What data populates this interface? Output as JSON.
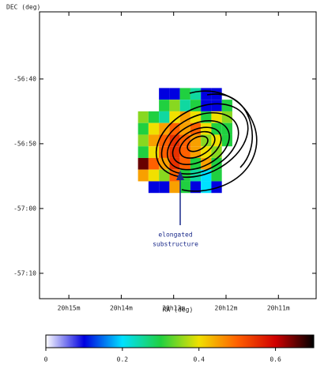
{
  "chart_data": {
    "type": "heatmap",
    "xlabel": "RA (deg)",
    "ylabel": "DEC (deg)",
    "xlim": [
      303.89,
      302.57
    ],
    "ylim": [
      -57.232,
      -56.494
    ],
    "xticks": [
      {
        "value": 303.75,
        "label": "20h15m"
      },
      {
        "value": 303.5,
        "label": "20h14m"
      },
      {
        "value": 303.25,
        "label": "20h13m"
      },
      {
        "value": 303.0,
        "label": "20h12m"
      },
      {
        "value": 302.75,
        "label": "20h11m"
      }
    ],
    "yticks": [
      {
        "value": -56.6667,
        "label": "-56:40"
      },
      {
        "value": -56.8333,
        "label": "-56:50"
      },
      {
        "value": -57.0,
        "label": "-57:00"
      },
      {
        "value": -57.1667,
        "label": "-57:10"
      }
    ],
    "x_edges": [
      303.42,
      303.37,
      303.32,
      303.27,
      303.22,
      303.17,
      303.12,
      303.07,
      303.02,
      302.97,
      302.92
    ],
    "y_edges": [
      -56.69,
      -56.72,
      -56.75,
      -56.78,
      -56.81,
      -56.84,
      -56.87,
      -56.9,
      -56.93,
      -56.96
    ],
    "z": [
      [
        null,
        null,
        0.1,
        0.1,
        0.3,
        0.25,
        0.1,
        0.1,
        null,
        null
      ],
      [
        null,
        null,
        0.3,
        0.35,
        0.25,
        0.3,
        0.1,
        0.1,
        0.3,
        null
      ],
      [
        0.35,
        0.3,
        0.25,
        0.4,
        0.45,
        0.4,
        0.3,
        0.4,
        0.35,
        null
      ],
      [
        0.3,
        0.4,
        0.45,
        0.5,
        0.45,
        0.5,
        0.4,
        0.3,
        0.3,
        null
      ],
      [
        0.35,
        0.45,
        0.5,
        0.55,
        0.5,
        0.45,
        0.35,
        0.4,
        0.3,
        null
      ],
      [
        0.3,
        0.4,
        0.5,
        0.55,
        0.5,
        0.45,
        0.4,
        0.35,
        null,
        null
      ],
      [
        0.65,
        0.5,
        0.45,
        0.55,
        0.5,
        0.3,
        0.45,
        0.3,
        null,
        null
      ],
      [
        0.45,
        0.4,
        0.35,
        0.5,
        0.3,
        0.25,
        0.2,
        0.3,
        null,
        null
      ],
      [
        null,
        0.1,
        0.1,
        0.45,
        0.3,
        0.1,
        0.2,
        0.1,
        null,
        null
      ]
    ],
    "clim": [
      0,
      0.7
    ],
    "cticks": [
      0,
      0.2,
      0.4,
      0.6
    ],
    "colormap": [
      "#ffffff",
      "#0000e0",
      "#00e0ff",
      "#20d040",
      "#f0e000",
      "#ff6000",
      "#d00000",
      "#000000"
    ],
    "annotation": [
      "elongated",
      "substructure"
    ]
  }
}
